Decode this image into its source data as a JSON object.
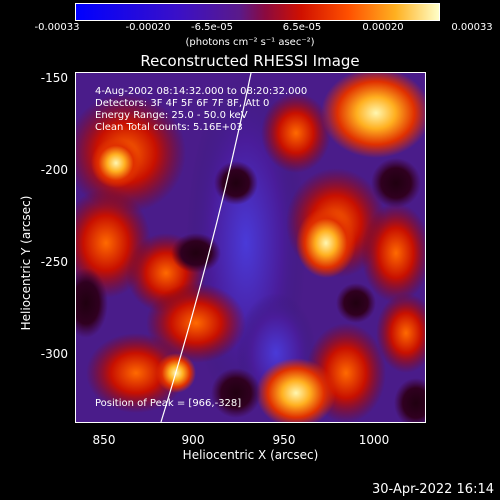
{
  "colorbar": {
    "tick_labels": [
      "-0.00033",
      "-0.00020",
      "-6.5e-05",
      "6.5e-05",
      "0.00020",
      "0.00033"
    ],
    "units": "(photons cm⁻² s⁻¹ asec⁻²)"
  },
  "plot": {
    "title": "Reconstructed RHESSI Image",
    "info_lines": [
      "4-Aug-2002 08:14:32.000 to 08:20:32.000",
      "Detectors: 3F 4F 5F 6F 7F 8F, Att 0",
      "Energy Range: 25.0 - 50.0 keV",
      "Clean     Total counts: 5.16E+03"
    ],
    "peak_text": "Position of Peak = [966,-328]",
    "xlabel": "Heliocentric X (arcsec)",
    "ylabel": "Heliocentric Y (arcsec)",
    "xticks": [
      "850",
      "900",
      "950",
      "1000"
    ],
    "yticks": [
      "-150",
      "-200",
      "-250",
      "-300"
    ]
  },
  "footer": {
    "timestamp": "30-Apr-2022 16:14"
  }
}
